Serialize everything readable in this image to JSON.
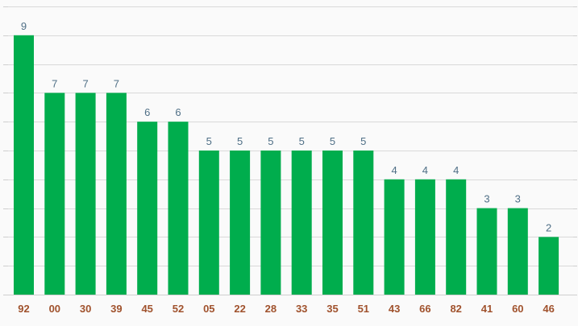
{
  "chart_data": {
    "type": "bar",
    "categories": [
      "92",
      "00",
      "30",
      "39",
      "45",
      "52",
      "05",
      "22",
      "28",
      "33",
      "35",
      "51",
      "43",
      "66",
      "82",
      "41",
      "60",
      "46"
    ],
    "values": [
      9,
      7,
      7,
      7,
      6,
      6,
      5,
      5,
      5,
      5,
      5,
      5,
      4,
      4,
      4,
      3,
      3,
      2
    ],
    "ylim": [
      0,
      10
    ],
    "grid": true,
    "data_labels": true,
    "xlabel": "",
    "ylabel": "",
    "colors": {
      "bar": "#00ad4d",
      "value_label": "#4f6f86",
      "category_label": "#a0522d",
      "grid": "#d9d9d9",
      "background": "#fafafa"
    }
  }
}
